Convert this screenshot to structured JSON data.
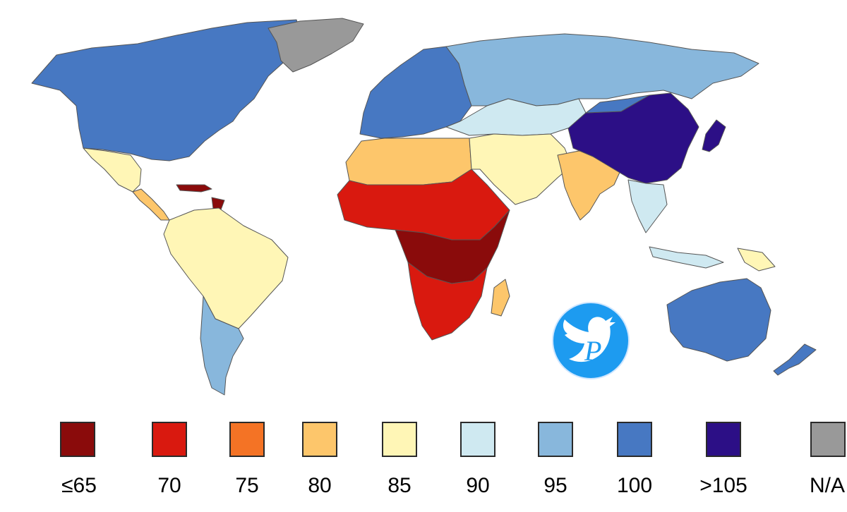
{
  "legend": {
    "items": [
      {
        "label": "≤65",
        "color": "#8a0b0b"
      },
      {
        "label": "70",
        "color": "#d9190f"
      },
      {
        "label": "75",
        "color": "#f47325"
      },
      {
        "label": "80",
        "color": "#fdc66b"
      },
      {
        "label": "85",
        "color": "#fff6b6"
      },
      {
        "label": "90",
        "color": "#cfe9f1"
      },
      {
        "label": "95",
        "color": "#88b7dc"
      },
      {
        "label": "100",
        "color": "#4778c2"
      },
      {
        "label": ">105",
        "color": "#2c0f86"
      },
      {
        "label": "N/A",
        "color": "#999999"
      }
    ]
  },
  "map": {
    "regions": [
      {
        "name": "north-america",
        "category": "100"
      },
      {
        "name": "greenland",
        "category": "N/A"
      },
      {
        "name": "mexico",
        "category": "85"
      },
      {
        "name": "central-america",
        "category": "80"
      },
      {
        "name": "caribbean",
        "category": "≤65"
      },
      {
        "name": "south-america",
        "category": "85"
      },
      {
        "name": "argentina-chile",
        "category": "95"
      },
      {
        "name": "europe",
        "category": "100"
      },
      {
        "name": "russia",
        "category": "95"
      },
      {
        "name": "central-asia",
        "category": "90"
      },
      {
        "name": "north-africa",
        "category": "80"
      },
      {
        "name": "middle-east",
        "category": "85"
      },
      {
        "name": "west-africa",
        "category": "70"
      },
      {
        "name": "central-africa",
        "category": "≤65"
      },
      {
        "name": "southern-africa",
        "category": "70"
      },
      {
        "name": "madagascar",
        "category": "80"
      },
      {
        "name": "india",
        "category": "80"
      },
      {
        "name": "china",
        "category": ">105"
      },
      {
        "name": "mongolia",
        "category": "100"
      },
      {
        "name": "japan",
        "category": ">105"
      },
      {
        "name": "southeast-asia",
        "category": "90"
      },
      {
        "name": "indonesia",
        "category": "90"
      },
      {
        "name": "papua",
        "category": "85"
      },
      {
        "name": "australia",
        "category": "100"
      },
      {
        "name": "new-zealand",
        "category": "100"
      }
    ]
  },
  "watermark": {
    "letter": "P"
  }
}
